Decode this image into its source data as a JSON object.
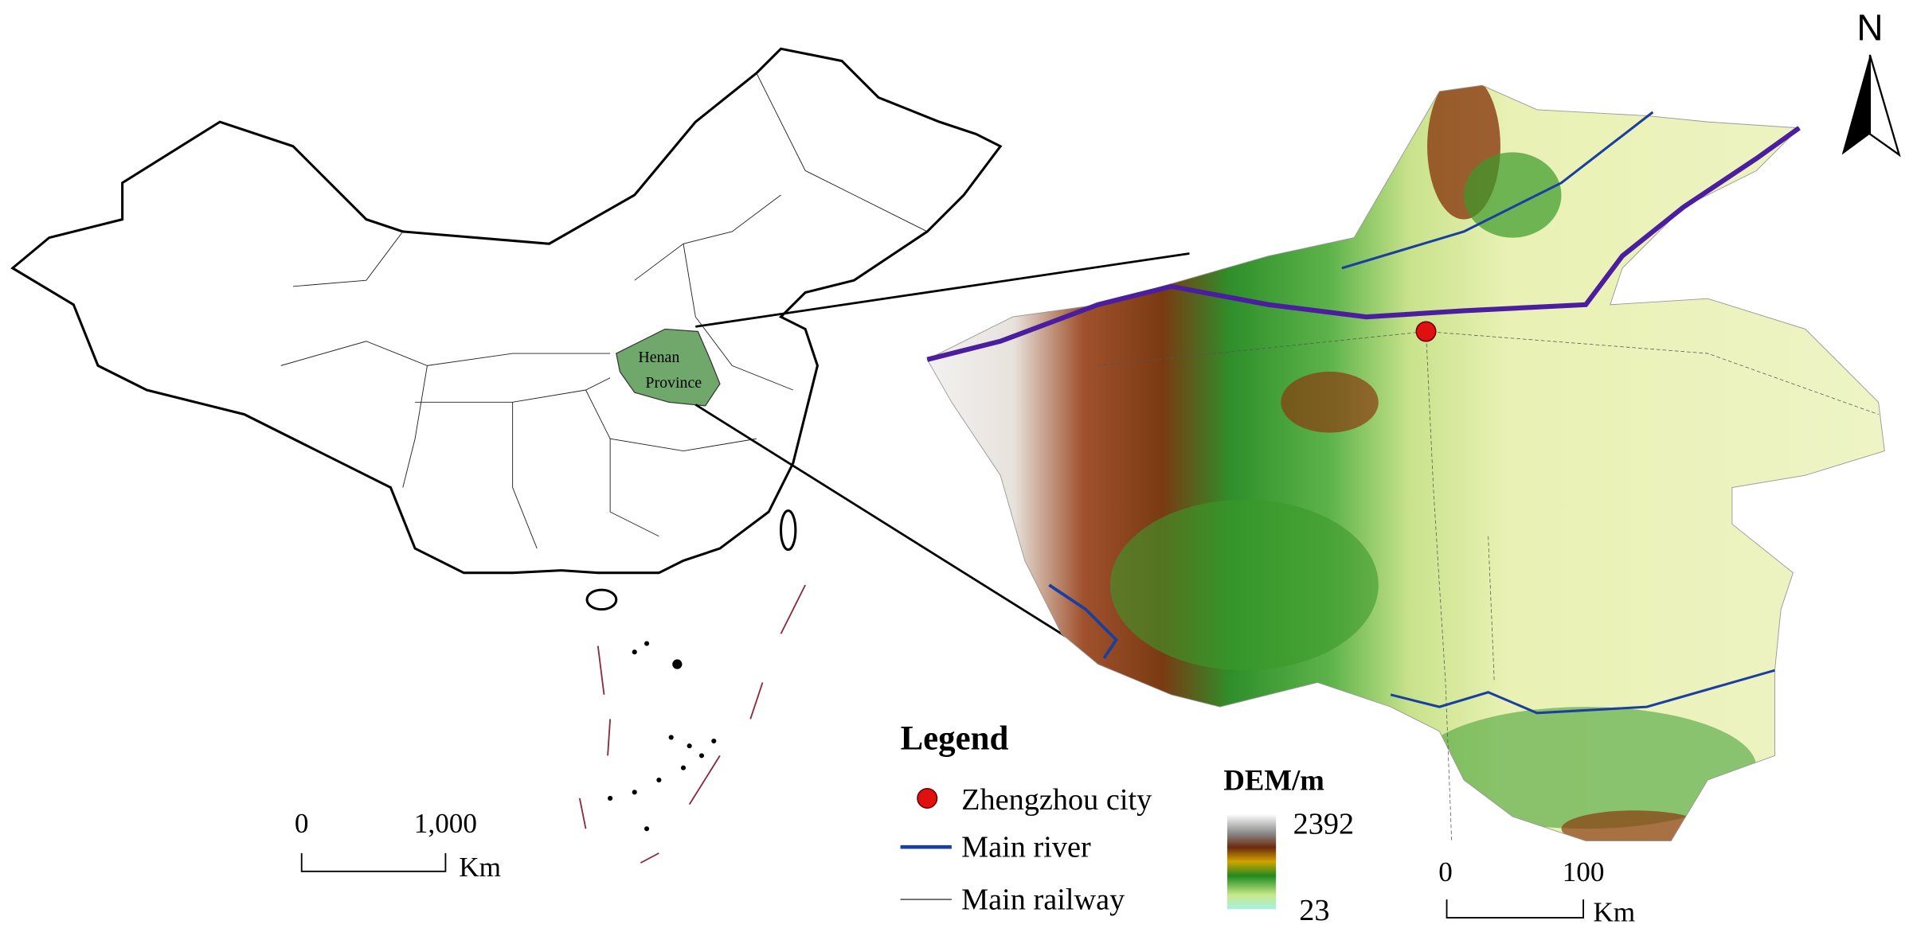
{
  "map": {
    "inset_label": [
      "Henan",
      "Province"
    ],
    "legend": {
      "title": "Legend",
      "items": [
        {
          "label": "Zhengzhou city"
        },
        {
          "label": "Main river"
        },
        {
          "label": "Main railway"
        }
      ]
    },
    "dem": {
      "title": "DEM/m",
      "max": 2392,
      "min": 23
    },
    "scale_bars": [
      {
        "ticks": [
          "0",
          "1,000"
        ],
        "unit": "Km"
      },
      {
        "ticks": [
          "0",
          "100"
        ],
        "unit": "Km"
      }
    ],
    "north": "N"
  }
}
